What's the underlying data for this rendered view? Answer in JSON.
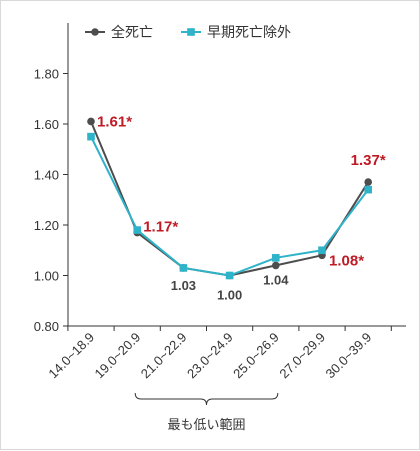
{
  "chart_data": {
    "type": "line",
    "categories": [
      "14.0~18.9",
      "19.0~20.9",
      "21.0~22.9",
      "23.0~24.9",
      "25.0~26.9",
      "27.0~29.9",
      "30.0~39.9"
    ],
    "series": [
      {
        "name": "全死亡",
        "values": [
          1.61,
          1.17,
          1.03,
          1.0,
          1.04,
          1.08,
          1.37
        ],
        "color": "#4d4d4d",
        "marker": "circle"
      },
      {
        "name": "早期死亡除外",
        "values": [
          1.55,
          1.18,
          1.03,
          1.0,
          1.07,
          1.1,
          1.34
        ],
        "color": "#2fb3c9",
        "marker": "square"
      }
    ],
    "ylim": [
      0.8,
      2.0
    ],
    "yticks": [
      "0.80",
      "1.00",
      "1.20",
      "1.40",
      "1.60",
      "1.80"
    ],
    "grid": false,
    "legend_position": "top",
    "annotations": [
      {
        "text": "1.61*",
        "category": "14.0~18.9",
        "style": "red"
      },
      {
        "text": "1.17*",
        "category": "19.0~20.9",
        "style": "red"
      },
      {
        "text": "1.03",
        "category": "21.0~22.9",
        "style": "gray"
      },
      {
        "text": "1.00",
        "category": "23.0~24.9",
        "style": "gray"
      },
      {
        "text": "1.04",
        "category": "25.0~26.9",
        "style": "gray"
      },
      {
        "text": "1.08*",
        "category": "27.0~29.9",
        "style": "red"
      },
      {
        "text": "1.37*",
        "category": "30.0~39.9",
        "style": "red"
      }
    ],
    "bracket_label": "最も低い範囲",
    "bracket_categories": [
      "19.0~20.9",
      "25.0~26.9"
    ],
    "colors": {
      "axis": "#333333",
      "highlight": "#c01a24",
      "label": "#444444"
    }
  }
}
